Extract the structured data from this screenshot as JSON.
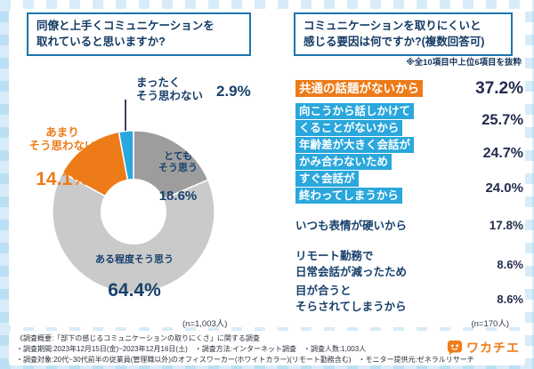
{
  "page": {
    "brand": "ワカチエ",
    "footer_lines": [
      "《調査概要:「部下の感じるコミュニケーションの取りにくさ」に関する調査",
      "・調査期間:2023年12月15日(金)~2023年12月16日(土)　・調査方法:インターネット調査　・調査人数:1,003人",
      "・調査対象:20代~30代前半の従業員(管理職以外)のオフィスワーカー(ホワイトカラー)(リモート勤務含む)　・モニター提供元:ゼネラルリサーチ"
    ]
  },
  "colors": {
    "accent_orange": "#ec7b18",
    "accent_blue": "#2aa7dc",
    "navy_text": "#17406b",
    "box_border_blue": "#1b75ae",
    "gray_dark": "#9d9d9d",
    "gray_light": "#cacaca"
  },
  "chart_data": [
    {
      "type": "pie",
      "title": "同僚と上手くコミュニケーションを\n取れていると思いますか?",
      "labels": [
        "とてもそう思う",
        "ある程度そう思う",
        "あまりそう思わない",
        "まったくそう思わない"
      ],
      "values": [
        18.6,
        64.4,
        14.1,
        2.9
      ],
      "value_labels": [
        "18.6%",
        "64.4%",
        "14.1%",
        "2.9%"
      ],
      "colors": [
        "#9d9d9d",
        "#cacaca",
        "#ec7b18",
        "#2aa7dc"
      ],
      "n_label": "(n=1,003人)",
      "label_lines": {
        "strongly": "とても\nそう思う",
        "somewhat": "ある程度そう思う",
        "not_really": "あまり\nそう思わない",
        "not_at_all": "まったく\nそう思わない"
      }
    },
    {
      "type": "bar",
      "title": "コミュニケーションを取りにくいと\n感じる要因は何ですか?(複数回答可)",
      "note": "※全10項目中上位6項目を抜粋",
      "n_label": "(n=170人)",
      "items": [
        {
          "label": "共通の話題がないから",
          "value": 37.2,
          "value_label": "37.2%",
          "highlight": "orange"
        },
        {
          "label": "向こうから話しかけて\nくることがないから",
          "value": 25.7,
          "value_label": "25.7%",
          "highlight": "blue"
        },
        {
          "label": "年齢差が大きく会話が\nかみ合わないため",
          "value": 24.7,
          "value_label": "24.7%",
          "highlight": "blue"
        },
        {
          "label": "すぐ会話が\n終わってしまうから",
          "value": 24.0,
          "value_label": "24.0%",
          "highlight": "blue"
        },
        {
          "label": "いつも表情が硬いから",
          "value": 17.8,
          "value_label": "17.8%",
          "highlight": "none"
        },
        {
          "label": "リモート勤務で\n日常会話が減ったため",
          "value": 8.6,
          "value_label": "8.6%",
          "highlight": "none"
        },
        {
          "label": "目が合うと\nそらされてしまうから",
          "value": 8.6,
          "value_label": "8.6%",
          "highlight": "none"
        }
      ]
    }
  ]
}
